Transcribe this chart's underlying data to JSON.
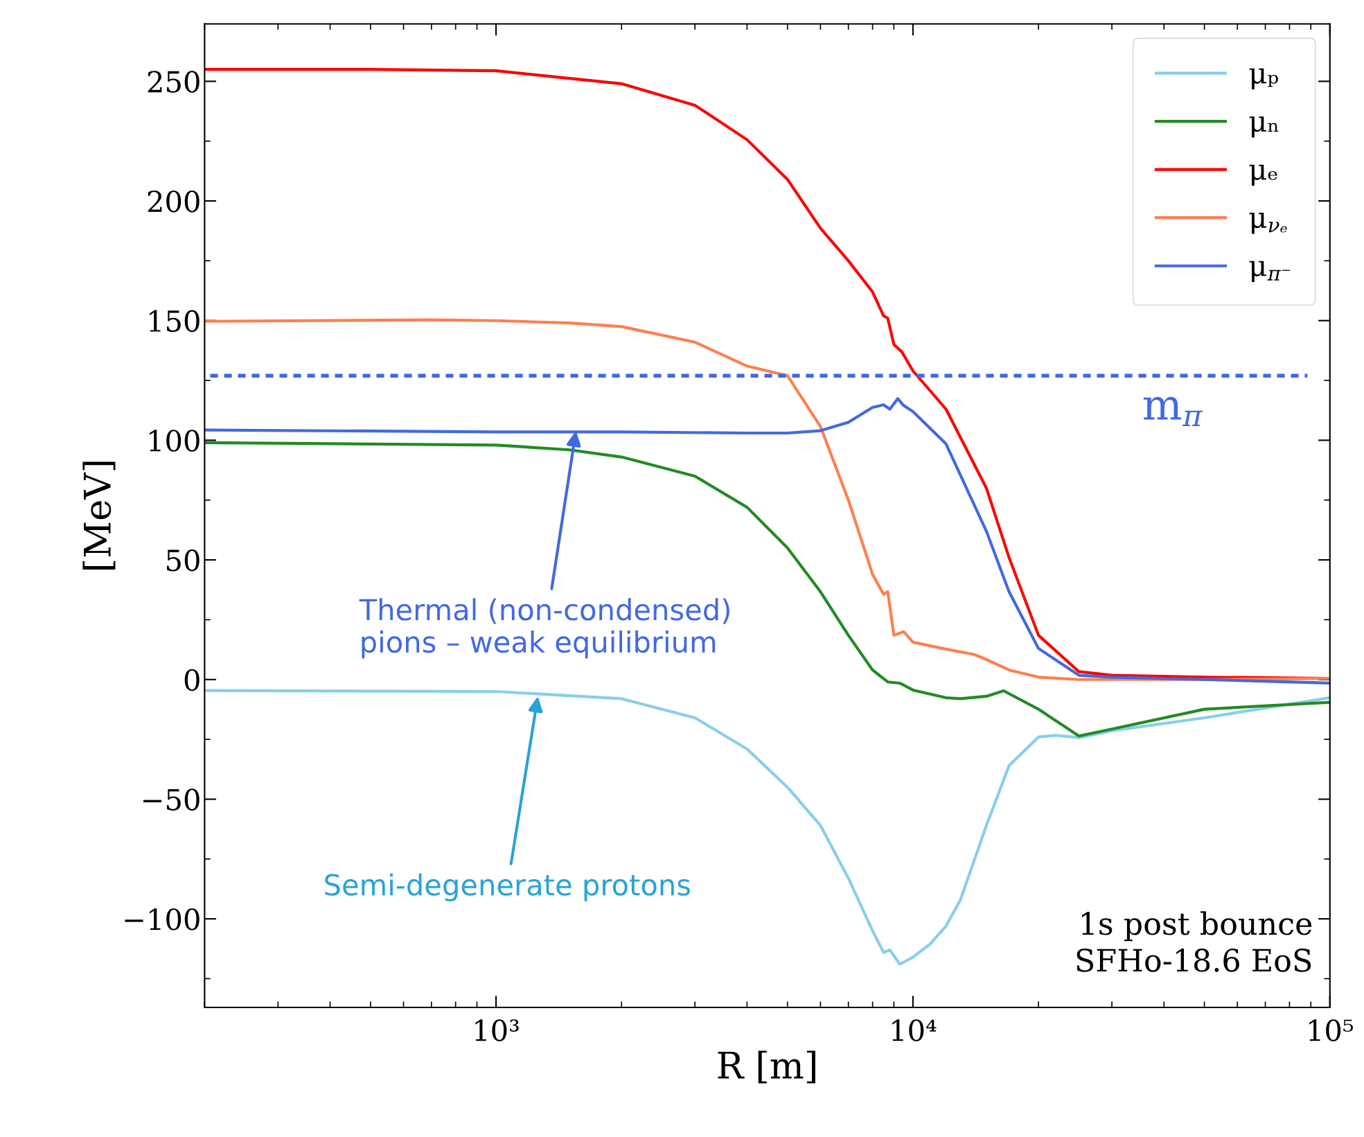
{
  "chart_data": {
    "type": "line",
    "xlabel": "R [m]",
    "ylabel": "[MeV]",
    "log": "x",
    "xlim": [
      200,
      100000
    ],
    "ylim": [
      -137,
      274
    ],
    "xticks": [
      {
        "value": 1000,
        "label": "10³"
      },
      {
        "value": 10000,
        "label": "10⁴"
      },
      {
        "value": 100000,
        "label": "10⁵"
      }
    ],
    "yticks": [
      {
        "value": -100,
        "label": "−100"
      },
      {
        "value": -50,
        "label": "−50"
      },
      {
        "value": 0,
        "label": "0"
      },
      {
        "value": 50,
        "label": "50"
      },
      {
        "value": 100,
        "label": "100"
      },
      {
        "value": 150,
        "label": "150"
      },
      {
        "value": 200,
        "label": "200"
      },
      {
        "value": 250,
        "label": "250"
      }
    ],
    "grid": false,
    "legend": "top right",
    "line_style": "solid",
    "marker": "none",
    "series": [
      {
        "name": "μₚ",
        "color": "#87ceeb",
        "x": [
          200,
          1000,
          2000,
          3000,
          4000,
          5000,
          6000,
          7000,
          8000,
          8500,
          8800,
          9300,
          10000,
          11000,
          12000,
          13000,
          15000,
          17000,
          20000,
          22000,
          25000,
          30000,
          50000,
          100000
        ],
        "values": [
          -4.6,
          -5,
          -8,
          -16,
          -29,
          -45,
          -61,
          -83,
          -105,
          -114,
          -113,
          -119,
          -116,
          -110.5,
          -103,
          -92,
          -61,
          -36,
          -24,
          -23.3,
          -24.3,
          -21.4,
          -16,
          -7.6
        ]
      },
      {
        "name": "μₙ",
        "color": "#228b22",
        "x": [
          200,
          1000,
          1500,
          2000,
          3000,
          4000,
          5000,
          6000,
          7000,
          8000,
          8700,
          9300,
          10000,
          12000,
          13000,
          15000,
          16500,
          20000,
          25000,
          30000,
          50000,
          100000
        ],
        "values": [
          99,
          98,
          96,
          93,
          85,
          72,
          55,
          36.7,
          18.5,
          4,
          -1,
          -1.5,
          -4.4,
          -7.6,
          -8,
          -7,
          -4.7,
          -12.4,
          -23.6,
          -20.7,
          -12.4,
          -9.5
        ]
      },
      {
        "name": "μₑ",
        "color": "#ff0000",
        "x": [
          200,
          500,
          1000,
          2000,
          3000,
          4000,
          5000,
          6000,
          7000,
          8000,
          8500,
          8700,
          9000,
          9400,
          10000,
          12000,
          15000,
          17000,
          20000,
          25000,
          30000,
          50000,
          100000
        ],
        "values": [
          255,
          255,
          254.4,
          249,
          240,
          225.6,
          209,
          188.6,
          175,
          162,
          152,
          151,
          140,
          137,
          129,
          113,
          80,
          51,
          18.5,
          3.3,
          1.8,
          1,
          0.5
        ]
      },
      {
        "name": "μ$_{νₑ}$",
        "color": "#ff7f50",
        "x": [
          200,
          700,
          1000,
          1500,
          2000,
          3000,
          4000,
          5000,
          6000,
          7000,
          8000,
          8500,
          8700,
          9000,
          9500,
          10000,
          12000,
          14000,
          15000,
          17000,
          20000,
          25000,
          50000,
          100000
        ],
        "values": [
          149.7,
          150.3,
          150,
          149,
          147.5,
          141,
          131,
          127,
          105.7,
          75,
          44,
          35.6,
          36.7,
          18.5,
          20,
          15.6,
          12.7,
          10.5,
          8.4,
          4,
          1,
          0,
          0,
          0.5
        ]
      },
      {
        "name": "μ$_{π⁻}$",
        "color": "#4169e1",
        "x": [
          200,
          1000,
          2000,
          4000,
          5000,
          6000,
          7000,
          8000,
          8500,
          8800,
          9200,
          9500,
          10000,
          12000,
          15000,
          17000,
          20000,
          25000,
          30000,
          50000,
          100000
        ],
        "values": [
          104.3,
          103.5,
          103.5,
          103,
          103,
          104,
          107.5,
          113.7,
          114.8,
          113,
          117.4,
          114.5,
          112,
          98.5,
          62,
          36.7,
          13,
          1.8,
          1,
          0,
          -1.5
        ]
      }
    ],
    "ref_lines": [
      {
        "axis": "y",
        "value": 127,
        "label": "m$_{π}$",
        "color": "#4169e1",
        "line_style": "dashed"
      }
    ],
    "annotations": [
      {
        "text": "Thermal (non-condensed)\npions – weak equilibrium",
        "x": 1555,
        "y": 104
      },
      {
        "text": "Semi-degenerate protons",
        "x": 1260,
        "y": -7
      },
      "1s post bounce\nSFHo-18.6 EoS"
    ]
  }
}
